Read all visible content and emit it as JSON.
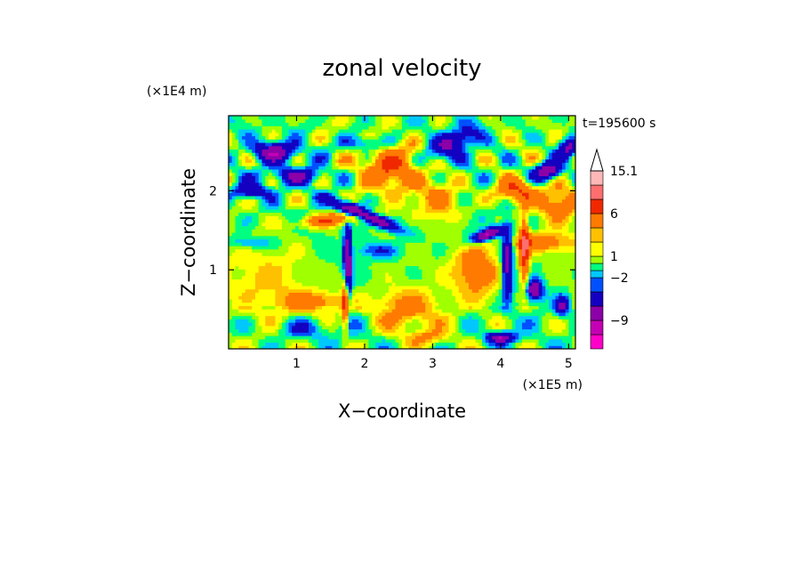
{
  "chart_data": {
    "type": "heatmap",
    "title": "zonal velocity",
    "time_label": "t=195600 s",
    "xlabel": "X−coordinate",
    "ylabel": "Z−coordinate",
    "x_unit": "(×1E5 m)",
    "y_unit": "(×1E4 m)",
    "xlim": [
      0,
      5.1
    ],
    "ylim": [
      0,
      2.95
    ],
    "x_ticks": [
      1,
      2,
      3,
      4,
      5
    ],
    "x_tick_labels": [
      "1",
      "2",
      "3",
      "4",
      "5"
    ],
    "y_ticks": [
      1,
      2
    ],
    "y_tick_labels": [
      "1",
      "2"
    ],
    "grid": false,
    "colorbar": {
      "levels": [
        -15,
        -12,
        -9,
        -6,
        -3,
        -2,
        -1,
        0,
        1,
        2,
        3,
        6,
        9,
        12,
        15.1
      ],
      "colors": [
        "#ff00c8",
        "#c400b4",
        "#8c00a8",
        "#1400c0",
        "#0050ff",
        "#00c8ff",
        "#00ff80",
        "#a0ff00",
        "#ffff00",
        "#ffc000",
        "#ff7a00",
        "#f02800",
        "#ff6e6e",
        "#ffb8b8"
      ],
      "labels": [
        {
          "value": 15.1,
          "text": "15.1"
        },
        {
          "value": 6,
          "text": "6"
        },
        {
          "value": 1,
          "text": "1"
        },
        {
          "value": -2,
          "text": "−2"
        },
        {
          "value": -9,
          "text": "−9"
        }
      ]
    }
  }
}
